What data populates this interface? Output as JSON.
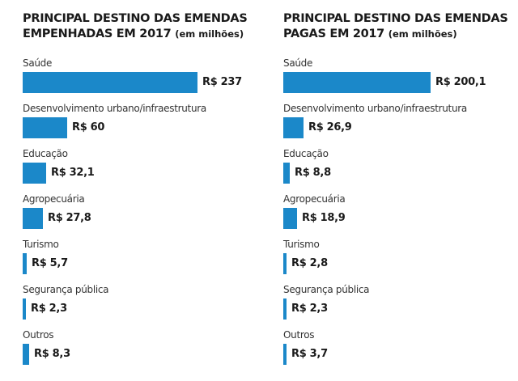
{
  "chart_data": [
    {
      "type": "bar",
      "orientation": "horizontal",
      "title": "PRINCIPAL DESTINO DAS EMENDAS EMPENHADAS EM 2017",
      "title_line1": "PRINCIPAL DESTINO DAS EMENDAS",
      "title_line2": "EMPENHADAS EM 2017",
      "unit": "(em milhões)",
      "color": "#1b88c9",
      "categories": [
        "Saúde",
        "Desenvolvimento urbano/infraestrutura",
        "Educação",
        "Agropecuária",
        "Turismo",
        "Segurança pública",
        "Outros"
      ],
      "values": [
        237,
        60,
        32.1,
        27.8,
        5.7,
        2.3,
        8.3
      ],
      "labels": [
        "R$ 237",
        "R$ 60",
        "R$ 32,1",
        "R$ 27,8",
        "R$ 5,7",
        "R$ 2,3",
        "R$ 8,3"
      ]
    },
    {
      "type": "bar",
      "orientation": "horizontal",
      "title": "PRINCIPAL DESTINO DAS EMENDAS PAGAS EM 2017",
      "title_line1": "PRINCIPAL DESTINO DAS EMENDAS",
      "title_line2": "PAGAS EM 2017",
      "unit": "(em milhões)",
      "color": "#1b88c9",
      "categories": [
        "Saúde",
        "Desenvolvimento urbano/infraestrutura",
        "Educação",
        "Agropecuária",
        "Turismo",
        "Segurança pública",
        "Outros"
      ],
      "values": [
        200.1,
        26.9,
        8.8,
        18.9,
        2.8,
        2.3,
        3.7
      ],
      "labels": [
        "R$ 200,1",
        "R$ 26,9",
        "R$ 8,8",
        "R$ 18,9",
        "R$ 2,8",
        "R$ 2,3",
        "R$ 3,7"
      ]
    }
  ]
}
